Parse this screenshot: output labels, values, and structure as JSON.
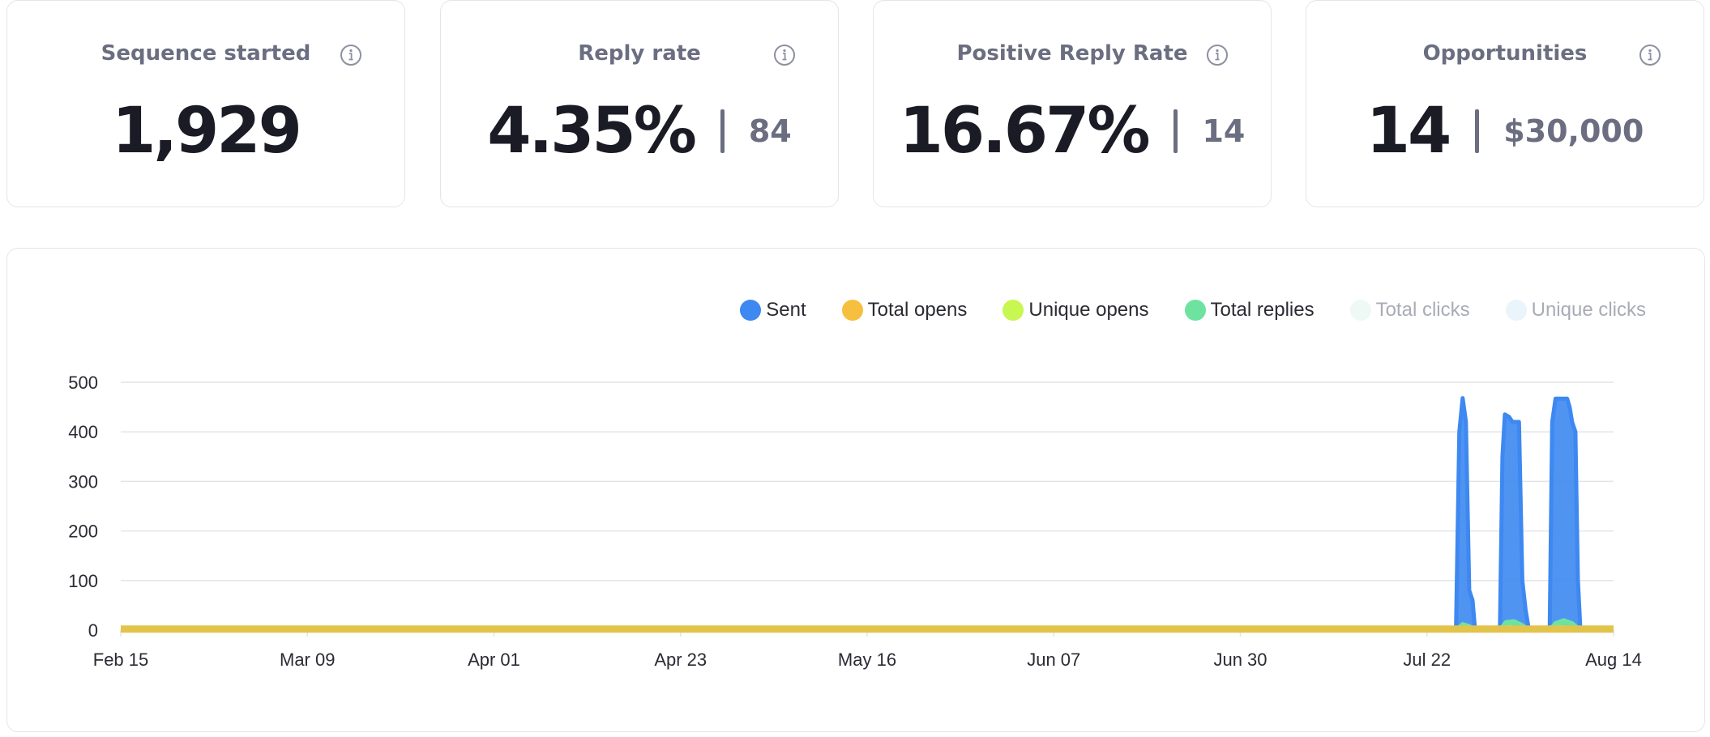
{
  "cards": [
    {
      "title": "Sequence started",
      "value": "1,929",
      "sub": ""
    },
    {
      "title": "Reply rate",
      "value": "4.35%",
      "sub": "84"
    },
    {
      "title": "Positive Reply Rate",
      "value": "16.67%",
      "sub": "14"
    },
    {
      "title": "Opportunities",
      "value": "14",
      "sub": "$30,000"
    }
  ],
  "legend": [
    {
      "label": "Sent",
      "color": "#3d88f1",
      "active": true
    },
    {
      "label": "Total opens",
      "color": "#f7bf3e",
      "active": true
    },
    {
      "label": "Unique opens",
      "color": "#c7f750",
      "active": true
    },
    {
      "label": "Total replies",
      "color": "#6ee3a0",
      "active": true
    },
    {
      "label": "Total clicks",
      "color": "#eef8f5",
      "active": false
    },
    {
      "label": "Unique clicks",
      "color": "#eaf4fb",
      "active": false
    }
  ],
  "chart_data": {
    "type": "area",
    "x_tick_labels": [
      "Feb 15",
      "Mar 09",
      "Apr 01",
      "Apr 23",
      "May 16",
      "Jun 07",
      "Jun 30",
      "Jul 22",
      "Aug 14"
    ],
    "y_ticks": [
      0,
      100,
      200,
      300,
      400,
      500
    ],
    "ylim": [
      0,
      500
    ],
    "x_range_days": [
      0,
      180
    ],
    "grid": true,
    "legend_position": "top-right",
    "series": [
      {
        "name": "Sent",
        "color": "#3d88f1",
        "points": [
          [
            0,
            0
          ],
          [
            161.0,
            0
          ],
          [
            161.4,
            400
          ],
          [
            161.8,
            468
          ],
          [
            162.2,
            420
          ],
          [
            162.6,
            80
          ],
          [
            163.0,
            60
          ],
          [
            163.3,
            0
          ],
          [
            166.3,
            0
          ],
          [
            166.6,
            350
          ],
          [
            166.9,
            435
          ],
          [
            167.4,
            430
          ],
          [
            167.8,
            420
          ],
          [
            168.6,
            420
          ],
          [
            169.0,
            100
          ],
          [
            169.4,
            40
          ],
          [
            169.8,
            0
          ],
          [
            172.3,
            0
          ],
          [
            172.6,
            420
          ],
          [
            173.0,
            467
          ],
          [
            174.4,
            467
          ],
          [
            174.7,
            450
          ],
          [
            175.0,
            420
          ],
          [
            175.4,
            400
          ],
          [
            175.7,
            100
          ],
          [
            176.0,
            0
          ],
          [
            180,
            0
          ]
        ]
      },
      {
        "name": "Total replies",
        "color": "#6ee3a0",
        "points": [
          [
            0,
            0
          ],
          [
            161.0,
            0
          ],
          [
            161.8,
            12
          ],
          [
            162.6,
            8
          ],
          [
            163.3,
            0
          ],
          [
            166.3,
            0
          ],
          [
            167.0,
            16
          ],
          [
            168.0,
            18
          ],
          [
            169.0,
            10
          ],
          [
            169.8,
            0
          ],
          [
            172.3,
            0
          ],
          [
            173.0,
            14
          ],
          [
            174.0,
            20
          ],
          [
            175.0,
            14
          ],
          [
            176.0,
            0
          ],
          [
            180,
            0
          ]
        ]
      },
      {
        "name": "Unique opens",
        "color": "#c7f750",
        "points": [
          [
            0,
            0
          ],
          [
            161.0,
            0
          ],
          [
            161.8,
            4
          ],
          [
            163.3,
            0
          ],
          [
            166.3,
            0
          ],
          [
            167.5,
            6
          ],
          [
            169.8,
            0
          ],
          [
            172.3,
            0
          ],
          [
            173.5,
            6
          ],
          [
            176.0,
            0
          ],
          [
            180,
            0
          ]
        ]
      },
      {
        "name": "Total opens",
        "color": "#e2c44c",
        "points": [
          [
            0,
            2
          ],
          [
            180,
            2
          ]
        ]
      }
    ]
  }
}
